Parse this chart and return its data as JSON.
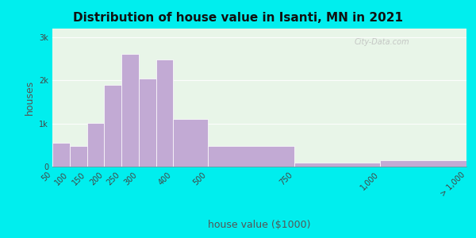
{
  "title": "Distribution of house value in Isanti, MN in 2021",
  "xlabel": "house value ($1000)",
  "ylabel": "houses",
  "background_outer": "#00EEEE",
  "background_inner": "#e8f5e8",
  "bar_color": "#c2aad4",
  "bar_edge_color": "#ffffff",
  "bar_heights": [
    550,
    480,
    1020,
    1900,
    2620,
    2050,
    2480,
    1100,
    480,
    100,
    150
  ],
  "bin_edges": [
    50,
    100,
    150,
    200,
    250,
    300,
    350,
    400,
    500,
    750,
    1000,
    1250
  ],
  "xtick_positions": [
    50,
    100,
    150,
    200,
    250,
    300,
    400,
    500,
    750,
    1000,
    1250
  ],
  "xtick_labels": [
    "50",
    "100",
    "150",
    "200",
    "250",
    "300",
    "400",
    "500",
    "750",
    "1,000",
    "> 1,000"
  ],
  "ytick_labels": [
    "0",
    "1k",
    "2k",
    "3k"
  ],
  "ytick_values": [
    0,
    1000,
    2000,
    3000
  ],
  "ylim": [
    0,
    3200
  ],
  "xlim": [
    50,
    1250
  ],
  "title_fontsize": 11,
  "axis_label_fontsize": 9,
  "tick_fontsize": 7,
  "watermark": "City-Data.com"
}
